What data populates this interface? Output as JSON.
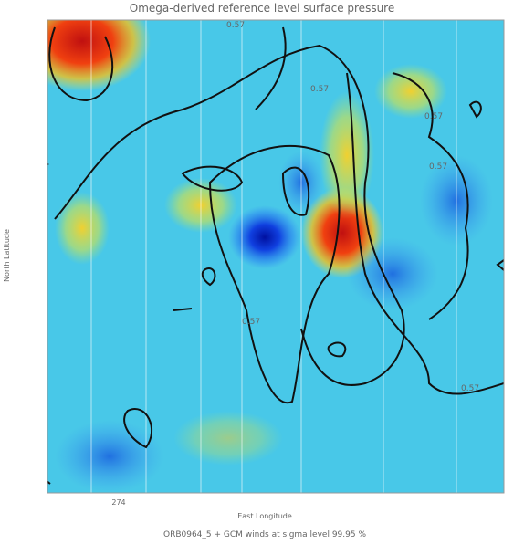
{
  "title": "Omega-derived reference level surface pressure",
  "y_axis_label": "North Latitude",
  "x_axis_label": "East Longitude",
  "x_tick_labels": [
    "274"
  ],
  "contour_labels": [
    "0.57",
    "0.57",
    "0.57",
    "0.57",
    "0.57",
    "0.57"
  ],
  "caption": "ORB0964_5 + GCM winds at sigma level 99.95 %"
}
